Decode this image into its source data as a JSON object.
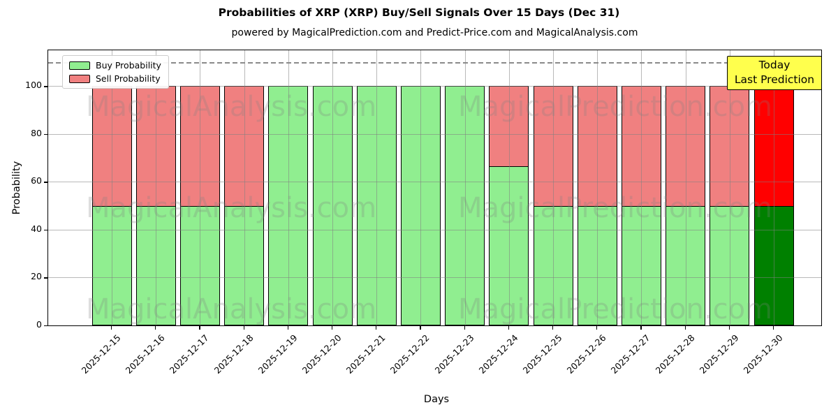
{
  "chart_data": {
    "type": "bar",
    "stacked": true,
    "title": "Probabilities of XRP (XRP) Buy/Sell Signals Over 15 Days (Dec 31)",
    "subtitle": "powered by MagicalPrediction.com and Predict-Price.com and MagicalAnalysis.com",
    "xlabel": "Days",
    "ylabel": "Probability",
    "ylim": [
      0,
      115
    ],
    "yticks": [
      0,
      20,
      40,
      60,
      80,
      100
    ],
    "grid": true,
    "dashed_line_y": 110,
    "legend_position": "upper left",
    "categories": [
      "2025-12-15",
      "2025-12-16",
      "2025-12-17",
      "2025-12-18",
      "2025-12-19",
      "2025-12-20",
      "2025-12-21",
      "2025-12-22",
      "2025-12-23",
      "2025-12-24",
      "2025-12-25",
      "2025-12-26",
      "2025-12-27",
      "2025-12-28",
      "2025-12-29",
      "2025-12-30"
    ],
    "series": [
      {
        "name": "Buy Probability",
        "color": "#90EE90",
        "today_color": "#008000",
        "values": [
          50,
          50,
          50,
          50,
          100,
          100,
          100,
          100,
          100,
          66.7,
          50,
          50,
          50,
          50,
          50,
          50
        ]
      },
      {
        "name": "Sell Probability",
        "color": "#F08080",
        "today_color": "#FF0000",
        "values": [
          50,
          50,
          50,
          50,
          0,
          0,
          0,
          0,
          0,
          33.3,
          50,
          50,
          50,
          50,
          50,
          50
        ]
      }
    ],
    "today_index": 15
  },
  "annotation": {
    "line1": "Today",
    "line2": "Last Prediction",
    "bg_color": "#FFFF4D",
    "border_color": "#000000"
  },
  "watermark": {
    "texts": [
      "MagicalAnalysis.com",
      "MagicalPrediction.com"
    ],
    "color": "#808080"
  },
  "axis_colors": {
    "grid": "#808080",
    "dashed_line": "#8A8A8A",
    "bar_edge": "#000000"
  }
}
